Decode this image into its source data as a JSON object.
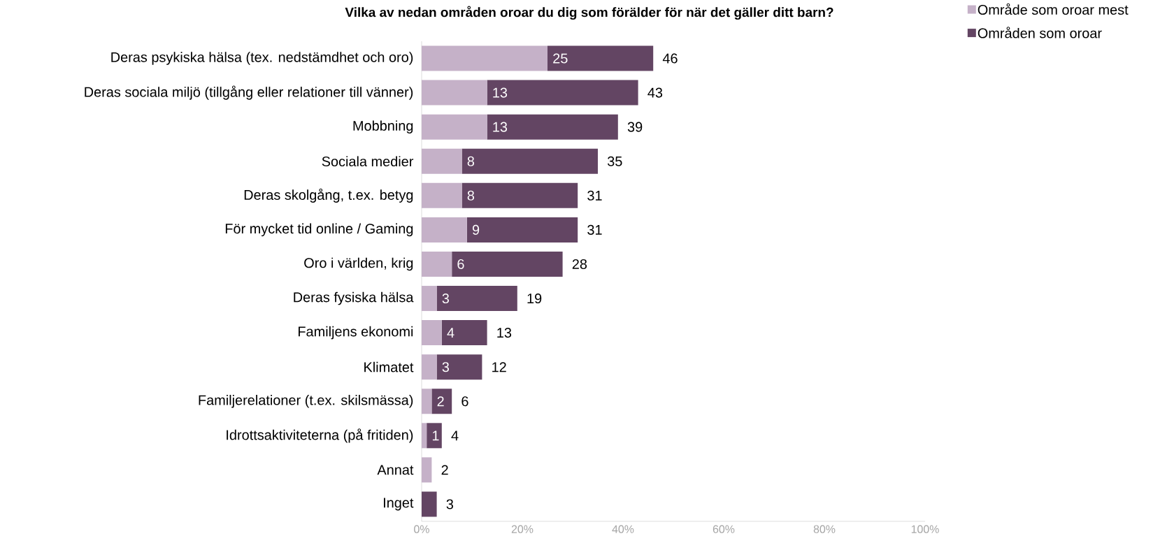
{
  "chart_data": {
    "type": "bar",
    "orientation": "horizontal",
    "stacked": true,
    "title": "Vilka av nedan områden oroar du dig som förälder för när det gäller ditt barn?",
    "categories": [
      "Deras psykiska hälsa (tex. nedstämdhet och oro)",
      "Deras sociala miljö (tillgång eller relationer till vänner)",
      "Mobbning",
      "Sociala medier",
      "Deras skolgång, t.ex. betyg",
      "För mycket tid online / Gaming",
      "Oro i världen, krig",
      "Deras fysiska hälsa",
      "Familjens ekonomi",
      "Klimatet",
      "Familjerelationer (t.ex. skilsmässa)",
      "Idrottsaktiviteterna (på fritiden)",
      "Annat",
      "Inget"
    ],
    "series": [
      {
        "name": "Område som oroar mest",
        "color": "#c5b1c8",
        "values": [
          25,
          13,
          13,
          8,
          8,
          9,
          6,
          3,
          4,
          3,
          2,
          1,
          2,
          0
        ],
        "value_labels": [
          "25",
          "13",
          "13",
          "8",
          "8",
          "9",
          "6",
          "3",
          "4",
          "3",
          "2",
          "1",
          null,
          null
        ]
      },
      {
        "name": "Områden som oroar",
        "color": "#634563",
        "values": [
          21,
          30,
          26,
          27,
          23,
          22,
          22,
          16,
          9,
          9,
          4,
          3,
          0,
          3
        ]
      }
    ],
    "totals": [
      "46",
      "43",
      "39",
      "35",
      "31",
      "31",
      "28",
      "19",
      "13",
      "12",
      "6",
      "4",
      "2",
      "3"
    ],
    "xlim": [
      0,
      100
    ],
    "xticks": [
      {
        "value": 0,
        "label": "0%"
      },
      {
        "value": 20,
        "label": "20%"
      },
      {
        "value": 40,
        "label": "40%"
      },
      {
        "value": 60,
        "label": "60%"
      },
      {
        "value": 80,
        "label": "80%"
      },
      {
        "value": 100,
        "label": "100%"
      }
    ],
    "legend": "top right"
  }
}
